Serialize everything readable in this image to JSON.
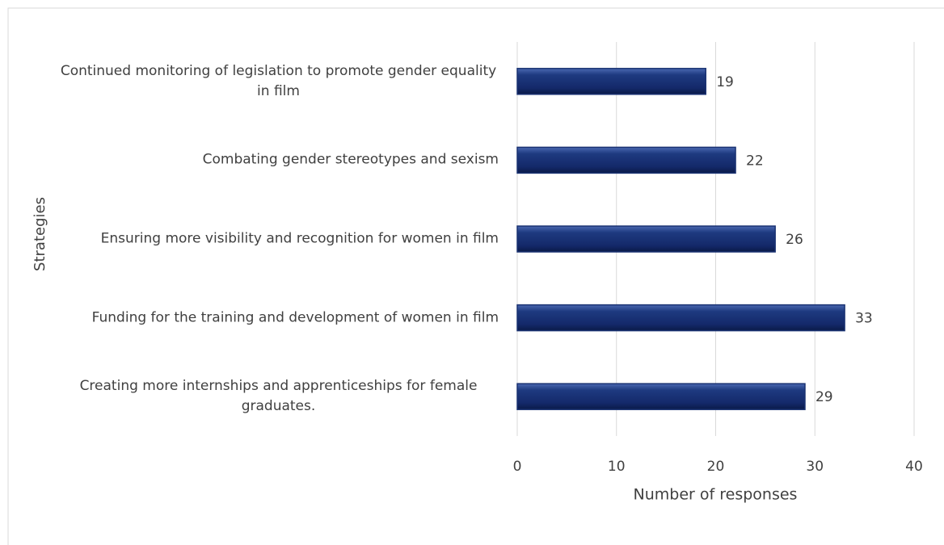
{
  "chart_data": {
    "type": "bar",
    "orientation": "horizontal",
    "categories": [
      "Continued monitoring of legislation to promote gender equality in film",
      "Combating gender stereotypes and sexism",
      "Ensuring more visibility and recognition for women in film",
      "Funding for the training and development of women in film",
      "Creating more internships and apprenticeships for female graduates."
    ],
    "values": [
      19,
      22,
      26,
      33,
      29
    ],
    "color": "#1a3272",
    "x_label": "Number of responses",
    "y_label": "Strategies",
    "xlim": [
      0,
      40
    ],
    "xticks": [
      0,
      10,
      20,
      30,
      40
    ],
    "grid": true
  }
}
